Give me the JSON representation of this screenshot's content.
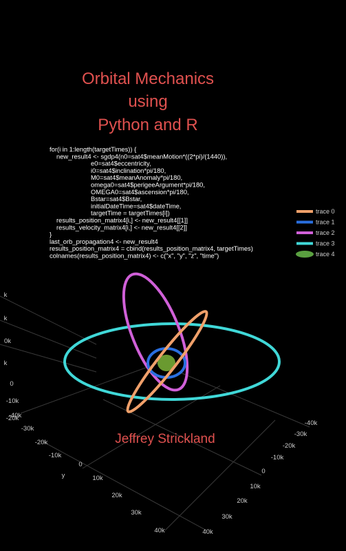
{
  "title": [
    "Orbital Mechanics",
    "using",
    "Python and R"
  ],
  "code": [
    "for(i in 1:length(targetTimes)) {",
    "new_result4 <- sgdp4(n0=sat4$meanMotion*((2*pi)/(1440)),",
    "e0=sat4$eccentricity,",
    "i0=sat4$inclination*pi/180,",
    "M0=sat4$meanAnomaly*pi/180,",
    "omega0=sat4$perigeeArgument*pi/180,",
    "OMEGA0=sat4$ascension*pi/180,",
    "Bstar=sat4$Bstar,",
    "initialDateTime=sat4$dateTime,",
    "targetTime = targetTimes[i])",
    "results_position_matrix4[i,] <- new_result4[[1]]",
    "results_velocity_matrix4[i,] <- new_result4[[2]]",
    "}",
    "last_orb_propagation4 <- new_result4",
    "results_position_matrix4 = cbind(results_position_matrix4, targetTimes)",
    "colnames(results_position_matrix4) <- c(\"x\", \"y\", \"z\", \"time\")"
  ],
  "legend": [
    {
      "name": "trace 0",
      "color": "#f0a06a"
    },
    {
      "name": "trace 1",
      "color": "#2a6fe0"
    },
    {
      "name": "trace 2",
      "color": "#d060d8"
    },
    {
      "name": "trace 3",
      "color": "#40d8d8"
    },
    {
      "name": "trace 4",
      "color": "#5aa040"
    }
  ],
  "z_ticks": [
    "k",
    "k",
    "0k",
    "k",
    "0",
    "-10k",
    "-20k"
  ],
  "x_ticks": [
    "-40k",
    "-30k",
    "-20k",
    "-10k",
    "0",
    "10k",
    "20k",
    "30k",
    "40k"
  ],
  "x_axis_label": "y",
  "y_ticks": [
    "-40k",
    "-30k",
    "-20k",
    "-10k",
    "0",
    "10k",
    "20k",
    "30k",
    "40k"
  ],
  "author": "Jeffrey Strickland"
}
